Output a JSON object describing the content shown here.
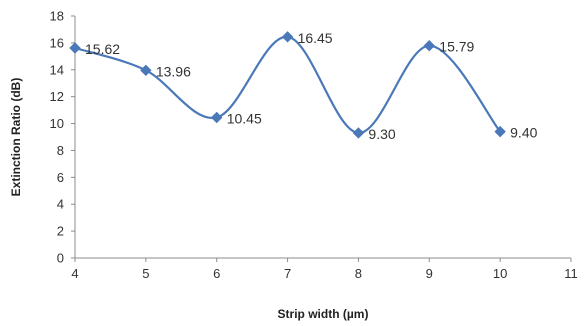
{
  "chart_data": {
    "type": "line",
    "title": "",
    "xlabel": "Strip width (µm)",
    "ylabel": "Extinction Ratio (dB)",
    "xlim": [
      4,
      11
    ],
    "ylim": [
      0,
      18
    ],
    "x_ticks": [
      "4",
      "5",
      "6",
      "7",
      "8",
      "9",
      "10",
      "11"
    ],
    "y_ticks": [
      "0",
      "2",
      "4",
      "6",
      "8",
      "10",
      "12",
      "14",
      "16",
      "18"
    ],
    "grid": false,
    "legend": "none",
    "smooth": true,
    "series": [
      {
        "color": "#4a78b8",
        "marker": "diamond",
        "x": [
          4,
          5,
          6,
          7,
          8,
          9,
          10
        ],
        "y": [
          15.62,
          13.96,
          10.45,
          16.45,
          9.3,
          15.79,
          9.4
        ],
        "labels": [
          "15.62",
          "13.96",
          "10.45",
          "16.45",
          "9.30",
          "15.79",
          "9.40"
        ]
      }
    ]
  }
}
